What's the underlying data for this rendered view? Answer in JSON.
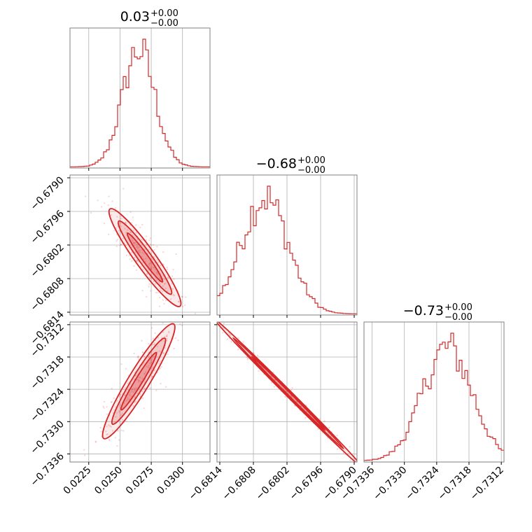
{
  "colors": {
    "series": "#d62728",
    "grid": "#b0b0b0",
    "frame": "#808080"
  },
  "chart_data": {
    "type": "corner",
    "grid": true,
    "parameters": [
      {
        "title": {
          "value": "0.03",
          "upper": "+0.00",
          "lower": "−0.00"
        },
        "range": [
          0.021,
          0.0322
        ],
        "ticks": [
          0.0225,
          0.025,
          0.0275,
          0.03
        ],
        "tick_labels": [
          "0.0225",
          "0.0250",
          "0.0275",
          "0.0300"
        ],
        "hist_center": 0.0265,
        "hist_sigma": 0.0013
      },
      {
        "title": {
          "value": "−0.68",
          "upper": "+0.00",
          "lower": "−0.00"
        },
        "range": [
          -0.68145,
          -0.67895
        ],
        "ticks": [
          -0.6814,
          -0.6808,
          -0.6802,
          -0.6796,
          -0.679
        ],
        "tick_labels": [
          "−0.6814",
          "−0.6808",
          "−0.6802",
          "−0.6796",
          "−0.6790"
        ],
        "hist_center": -0.6806,
        "hist_sigma": 0.00042
      },
      {
        "title": {
          "value": "−0.73",
          "upper": "+0.00",
          "lower": "−0.00"
        },
        "range": [
          -0.73375,
          -0.73115
        ],
        "ticks": [
          -0.7336,
          -0.733,
          -0.7324,
          -0.7318,
          -0.7312
        ],
        "tick_labels": [
          "−0.7336",
          "−0.7330",
          "−0.7324",
          "−0.7318",
          "−0.7312"
        ],
        "hist_center": -0.7322,
        "hist_sigma": 0.00046
      }
    ],
    "pairs": [
      {
        "x": 0,
        "y": 1,
        "line": [
          [
            0.0245,
            -0.67965
          ],
          [
            0.0295,
            -0.6812
          ]
        ],
        "width": 0.0001
      },
      {
        "x": 0,
        "y": 2,
        "line": [
          [
            0.024,
            -0.7332
          ],
          [
            0.029,
            -0.7313
          ]
        ],
        "width": 0.00011
      },
      {
        "x": 1,
        "y": 2,
        "line": [
          [
            -0.68135,
            -0.73125
          ],
          [
            -0.679,
            -0.7337
          ]
        ],
        "width": 3e-05
      }
    ]
  }
}
